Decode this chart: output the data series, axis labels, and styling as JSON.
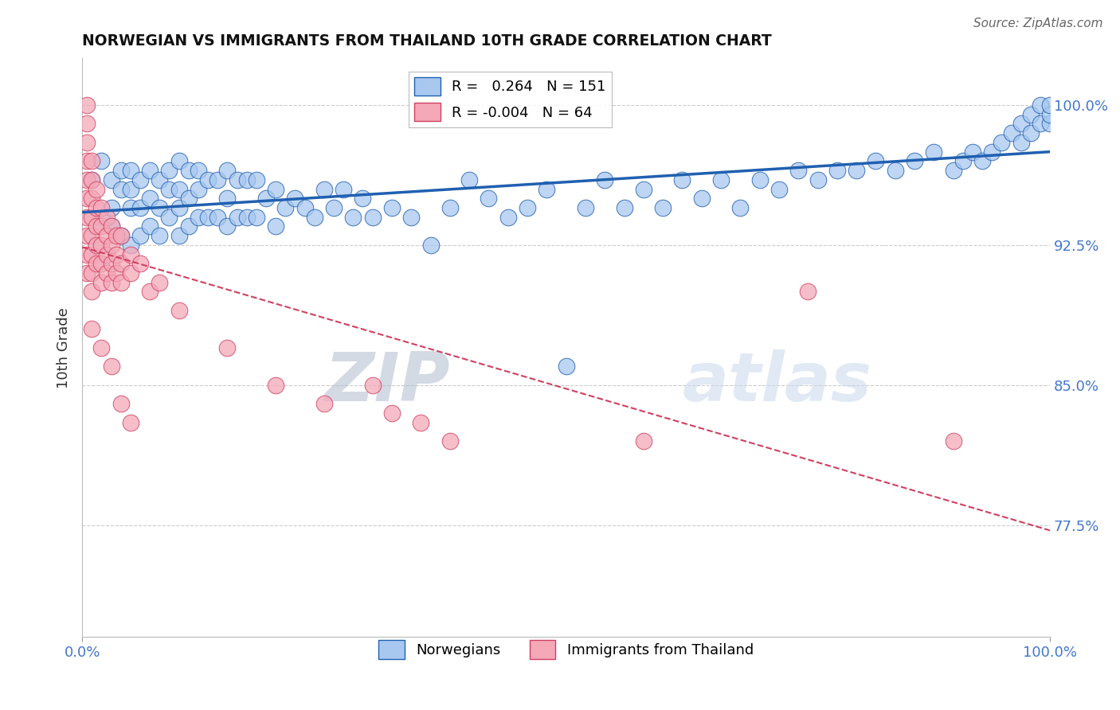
{
  "title": "NORWEGIAN VS IMMIGRANTS FROM THAILAND 10TH GRADE CORRELATION CHART",
  "source": "Source: ZipAtlas.com",
  "ylabel": "10th Grade",
  "xlim": [
    0.0,
    1.0
  ],
  "ylim": [
    0.715,
    1.025
  ],
  "xtick_labels": [
    "0.0%",
    "100.0%"
  ],
  "xtick_positions": [
    0.0,
    1.0
  ],
  "ytick_labels": [
    "77.5%",
    "85.0%",
    "92.5%",
    "100.0%"
  ],
  "ytick_positions": [
    0.775,
    0.85,
    0.925,
    1.0
  ],
  "blue_r": 0.264,
  "blue_n": 151,
  "pink_r": -0.004,
  "pink_n": 64,
  "blue_color": "#A8C8F0",
  "pink_color": "#F4A8B8",
  "blue_line_color": "#2060B0",
  "pink_line_color": "#D04060",
  "legend_blue_label": "Norwegians",
  "legend_pink_label": "Immigrants from Thailand",
  "watermark_zip": "ZIP",
  "watermark_atlas": "atlas",
  "background_color": "#FFFFFF",
  "grid_color": "#CCCCCC",
  "blue_x": [
    0.01,
    0.02,
    0.02,
    0.03,
    0.03,
    0.03,
    0.04,
    0.04,
    0.04,
    0.05,
    0.05,
    0.05,
    0.05,
    0.06,
    0.06,
    0.06,
    0.07,
    0.07,
    0.07,
    0.08,
    0.08,
    0.08,
    0.09,
    0.09,
    0.09,
    0.1,
    0.1,
    0.1,
    0.1,
    0.11,
    0.11,
    0.11,
    0.12,
    0.12,
    0.12,
    0.13,
    0.13,
    0.14,
    0.14,
    0.15,
    0.15,
    0.15,
    0.16,
    0.16,
    0.17,
    0.17,
    0.18,
    0.18,
    0.19,
    0.2,
    0.2,
    0.21,
    0.22,
    0.23,
    0.24,
    0.25,
    0.26,
    0.27,
    0.28,
    0.29,
    0.3,
    0.32,
    0.34,
    0.36,
    0.38,
    0.4,
    0.42,
    0.44,
    0.46,
    0.48,
    0.5,
    0.52,
    0.54,
    0.56,
    0.58,
    0.6,
    0.62,
    0.64,
    0.66,
    0.68,
    0.7,
    0.72,
    0.74,
    0.76,
    0.78,
    0.8,
    0.82,
    0.84,
    0.86,
    0.88,
    0.9,
    0.91,
    0.92,
    0.93,
    0.94,
    0.95,
    0.96,
    0.97,
    0.97,
    0.98,
    0.98,
    0.99,
    0.99,
    1.0,
    1.0,
    1.0
  ],
  "blue_y": [
    0.96,
    0.94,
    0.97,
    0.935,
    0.945,
    0.96,
    0.93,
    0.955,
    0.965,
    0.925,
    0.945,
    0.955,
    0.965,
    0.93,
    0.945,
    0.96,
    0.935,
    0.95,
    0.965,
    0.93,
    0.945,
    0.96,
    0.94,
    0.955,
    0.965,
    0.93,
    0.945,
    0.955,
    0.97,
    0.935,
    0.95,
    0.965,
    0.94,
    0.955,
    0.965,
    0.94,
    0.96,
    0.94,
    0.96,
    0.935,
    0.95,
    0.965,
    0.94,
    0.96,
    0.94,
    0.96,
    0.94,
    0.96,
    0.95,
    0.935,
    0.955,
    0.945,
    0.95,
    0.945,
    0.94,
    0.955,
    0.945,
    0.955,
    0.94,
    0.95,
    0.94,
    0.945,
    0.94,
    0.925,
    0.945,
    0.96,
    0.95,
    0.94,
    0.945,
    0.955,
    0.86,
    0.945,
    0.96,
    0.945,
    0.955,
    0.945,
    0.96,
    0.95,
    0.96,
    0.945,
    0.96,
    0.955,
    0.965,
    0.96,
    0.965,
    0.965,
    0.97,
    0.965,
    0.97,
    0.975,
    0.965,
    0.97,
    0.975,
    0.97,
    0.975,
    0.98,
    0.985,
    0.98,
    0.99,
    0.985,
    0.995,
    0.99,
    1.0,
    0.99,
    0.995,
    1.0
  ],
  "pink_x": [
    0.005,
    0.005,
    0.005,
    0.005,
    0.005,
    0.005,
    0.005,
    0.005,
    0.005,
    0.005,
    0.01,
    0.01,
    0.01,
    0.01,
    0.01,
    0.01,
    0.01,
    0.01,
    0.015,
    0.015,
    0.015,
    0.015,
    0.015,
    0.02,
    0.02,
    0.02,
    0.02,
    0.02,
    0.025,
    0.025,
    0.025,
    0.025,
    0.03,
    0.03,
    0.03,
    0.03,
    0.035,
    0.035,
    0.035,
    0.04,
    0.04,
    0.04,
    0.05,
    0.05,
    0.06,
    0.07,
    0.08,
    0.1,
    0.15,
    0.2,
    0.25,
    0.3,
    0.32,
    0.35,
    0.38,
    0.58,
    0.75,
    0.9,
    0.01,
    0.02,
    0.03,
    0.04,
    0.05
  ],
  "pink_y": [
    1.0,
    0.99,
    0.98,
    0.97,
    0.96,
    0.95,
    0.94,
    0.93,
    0.92,
    0.91,
    0.97,
    0.96,
    0.95,
    0.94,
    0.93,
    0.92,
    0.91,
    0.9,
    0.955,
    0.945,
    0.935,
    0.925,
    0.915,
    0.945,
    0.935,
    0.925,
    0.915,
    0.905,
    0.94,
    0.93,
    0.92,
    0.91,
    0.935,
    0.925,
    0.915,
    0.905,
    0.93,
    0.92,
    0.91,
    0.93,
    0.915,
    0.905,
    0.92,
    0.91,
    0.915,
    0.9,
    0.905,
    0.89,
    0.87,
    0.85,
    0.84,
    0.85,
    0.835,
    0.83,
    0.82,
    0.82,
    0.9,
    0.82,
    0.88,
    0.87,
    0.86,
    0.84,
    0.83
  ]
}
